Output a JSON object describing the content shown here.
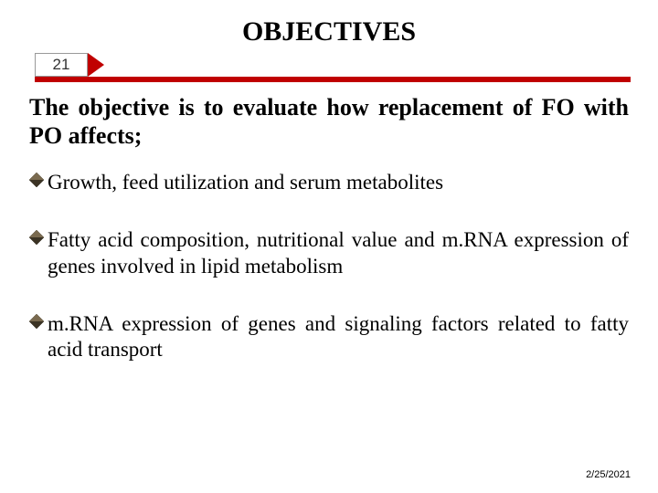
{
  "title": "OBJECTIVES",
  "slide_number": "21",
  "intro": "The objective is to evaluate how replacement of FO with PO affects;",
  "bullets": [
    "Growth, feed utilization and serum metabolites",
    "Fatty acid composition, nutritional value and m.RNA expression of genes involved in lipid metabolism",
    "m.RNA expression of genes and signaling factors related to fatty acid transport"
  ],
  "date": "2/25/2021",
  "style": {
    "background_color": "#ffffff",
    "title_fontsize": 30,
    "intro_fontsize": 26,
    "bullet_fontsize": 23,
    "date_fontsize": 11,
    "text_color": "#000000",
    "banner_bar_color": "#c00000",
    "banner_arrow_color": "#c00000",
    "banner_num_bg": "#ffffff",
    "banner_num_border": "#999999",
    "bullet_icon": {
      "type": "diamond",
      "size": 16,
      "fill_top": "#7a6a4f",
      "fill_bottom": "#3b3324",
      "border": "#2b2518"
    }
  }
}
